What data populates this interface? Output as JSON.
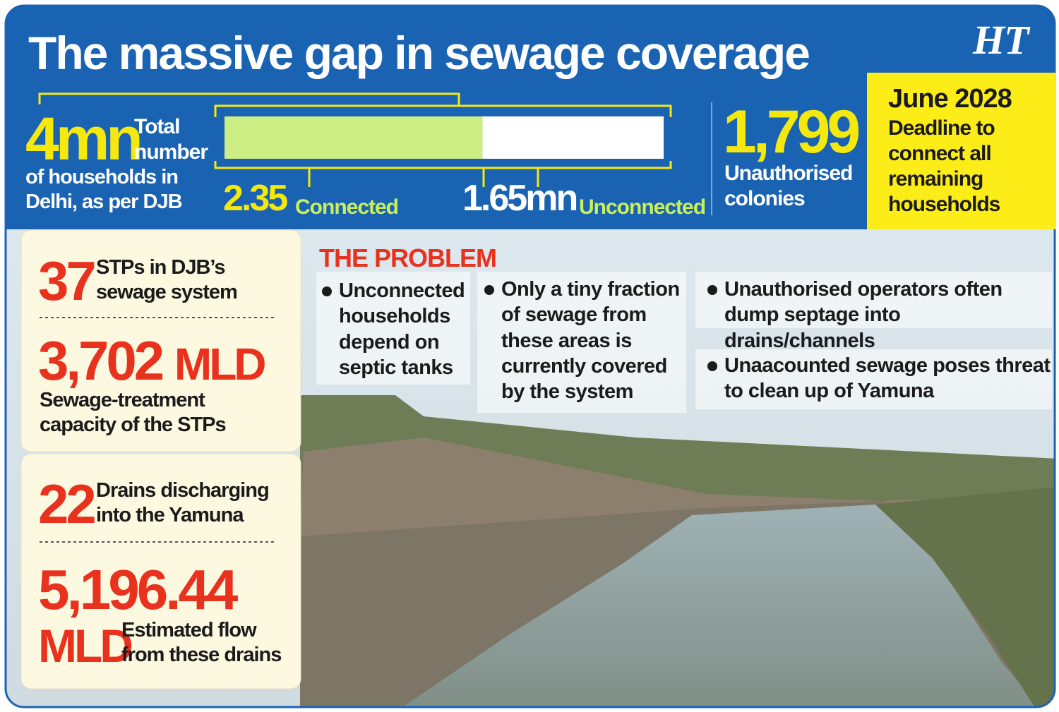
{
  "header": {
    "title": "The massive gap in sewage coverage",
    "logo": "HT"
  },
  "households": {
    "total": 4,
    "total_unit": "mn",
    "total_label": "Total number",
    "description": "of households in Delhi, as per DJB"
  },
  "coverage_bar": {
    "connected": 2.35,
    "connected_label": "Connected",
    "unconnected": 1.65,
    "unconnected_unit": "mn",
    "unconnected_label": "Unconnected"
  },
  "colonies": {
    "value": "1,799",
    "label": "Unauthorised colonies"
  },
  "deadline": {
    "date": "June 2028",
    "text": "Deadline to connect all remaining households"
  },
  "stats": [
    {
      "value": "37",
      "label": "STPs in DJB’s sewage system"
    },
    {
      "value": "3,702",
      "unit": "MLD",
      "label": "Sewage-treatment capacity of the STPs"
    },
    {
      "value": "22",
      "label": "Drains discharging into the Yamuna"
    },
    {
      "value": "5,196.44",
      "unit": "MLD",
      "label": "Estimated flow from these drains"
    }
  ],
  "problem": {
    "heading": "THE PROBLEM",
    "points": [
      "Unconnected households depend on septic tanks",
      "Only a tiny fraction of sewage from these areas is currently covered by the system",
      "Unauthorised operators often dump septage into drains/channels",
      "Unaacounted sewage poses threat to clean up of Yamuna"
    ]
  }
}
